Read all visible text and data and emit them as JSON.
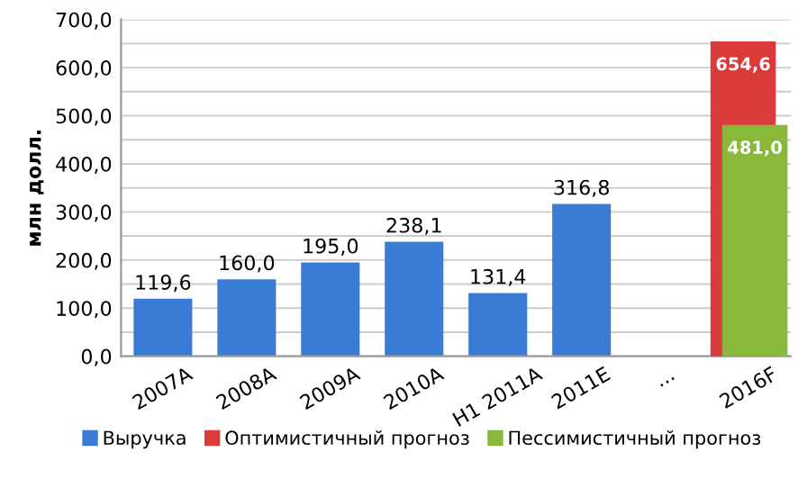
{
  "chart_data": {
    "type": "bar",
    "ylabel": "млн долл.",
    "categories": [
      "2007A",
      "2008A",
      "2009A",
      "2010A",
      "H1 2011A",
      "2011E",
      "...",
      "2016F"
    ],
    "series": [
      {
        "name": "Выручка",
        "color": "#3a7bd5",
        "values": [
          119.6,
          160.0,
          195.0,
          238.1,
          131.4,
          316.8,
          null,
          null
        ],
        "value_labels": [
          "119,6",
          "160,0",
          "195,0",
          "238,1",
          "131,4",
          "316,8",
          null,
          null
        ]
      },
      {
        "name": "Оптимистичный прогноз",
        "color": "#d93a3a",
        "values": [
          null,
          null,
          null,
          null,
          null,
          null,
          null,
          654.6
        ],
        "value_labels": [
          null,
          null,
          null,
          null,
          null,
          null,
          null,
          "654,6"
        ]
      },
      {
        "name": "Пессимистичный прогноз",
        "color": "#8ab83a",
        "values": [
          null,
          null,
          null,
          null,
          null,
          null,
          null,
          481.0
        ],
        "value_labels": [
          null,
          null,
          null,
          null,
          null,
          null,
          null,
          "481,0"
        ]
      }
    ],
    "ylim": [
      0,
      700
    ],
    "yticks": [
      {
        "value": 0,
        "label": "0,0"
      },
      {
        "value": 50,
        "label": null
      },
      {
        "value": 100,
        "label": "100,0"
      },
      {
        "value": 150,
        "label": null
      },
      {
        "value": 200,
        "label": "200,0"
      },
      {
        "value": 250,
        "label": null
      },
      {
        "value": 300,
        "label": "300,0"
      },
      {
        "value": 350,
        "label": null
      },
      {
        "value": 400,
        "label": "400,0"
      },
      {
        "value": 450,
        "label": null
      },
      {
        "value": 500,
        "label": "500,0"
      },
      {
        "value": 550,
        "label": null
      },
      {
        "value": 600,
        "label": "600,0"
      },
      {
        "value": 650,
        "label": null
      },
      {
        "value": 700,
        "label": "700,0"
      }
    ],
    "grid": "y",
    "legend": "bottom"
  }
}
